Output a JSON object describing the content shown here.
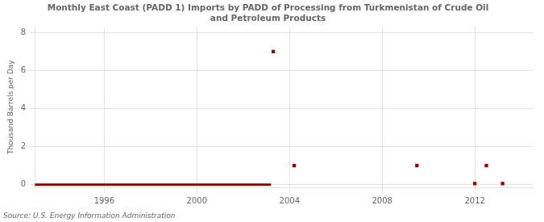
{
  "chart_data": {
    "type": "scatter",
    "title": "Monthly East Coast (PADD 1) Imports by PADD of Processing from Turkmenistan of Crude Oil\nand Petroleum Products",
    "ylabel": "Thousand Barrels per Day",
    "source": "Source: U.S. Energy Information Administration",
    "xlim": [
      1993.0,
      2014.5
    ],
    "xticks": [
      1996,
      2000,
      2004,
      2008,
      2012
    ],
    "ylim": [
      -0.15,
      8.3
    ],
    "yticks": [
      0,
      2,
      4,
      6,
      8
    ],
    "grid": true,
    "series": [
      {
        "type": "line",
        "color": "#8b0000",
        "x": [
          1993.0,
          2003.2
        ],
        "values": [
          0,
          0
        ]
      },
      {
        "type": "scatter",
        "marker": "square",
        "color": "#990000",
        "x": [
          2003.3,
          2004.2,
          2009.5,
          2012.0,
          2012.5,
          2013.2
        ],
        "values": [
          7.0,
          1.0,
          1.0,
          0.05,
          1.0,
          0.05
        ]
      }
    ]
  }
}
